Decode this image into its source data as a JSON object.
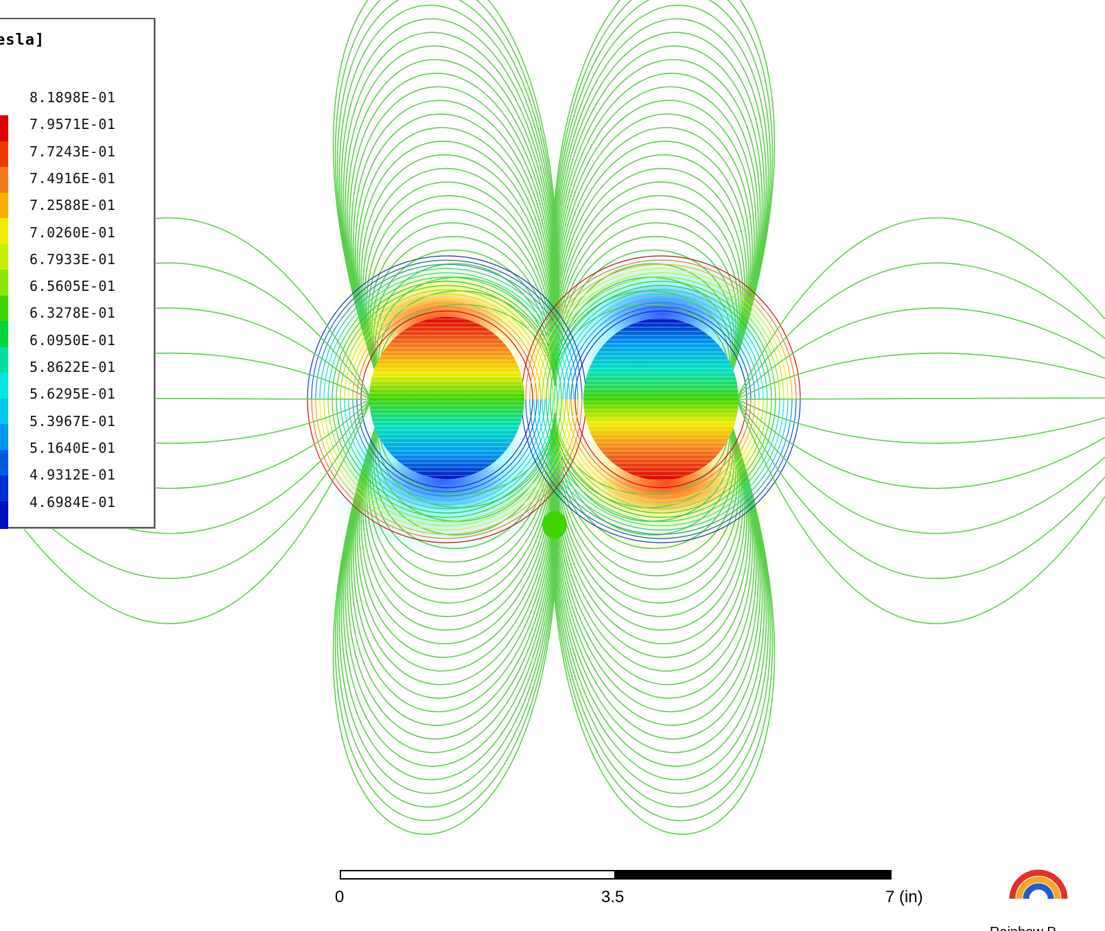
{
  "legend": {
    "title": "esla]",
    "values": [
      "8.1898E-01",
      "7.9571E-01",
      "7.7243E-01",
      "7.4916E-01",
      "7.2588E-01",
      "7.0260E-01",
      "6.7933E-01",
      "6.5605E-01",
      "6.3278E-01",
      "6.0950E-01",
      "5.8622E-01",
      "5.6295E-01",
      "5.3967E-01",
      "5.1640E-01",
      "4.9312E-01",
      "4.6984E-01"
    ],
    "colors": [
      "#e00000",
      "#ee3a00",
      "#f4781c",
      "#f9b000",
      "#f2ee00",
      "#c8ef00",
      "#8ce800",
      "#3ed400",
      "#00d63a",
      "#00e0a0",
      "#00e8e0",
      "#00c8f0",
      "#0096f0",
      "#005ae0",
      "#0030d8",
      "#0010c0"
    ]
  },
  "field_plot": {
    "line_color": "#5ad04a",
    "left_cylinder": {
      "top_color": "#e00000",
      "bottom_color": "#0010c0"
    },
    "right_cylinder": {
      "top_color": "#0010c0",
      "bottom_color": "#e00000"
    }
  },
  "scale_bar": {
    "labels": [
      "0",
      "3.5",
      "7 (in)"
    ]
  },
  "logo": {
    "colors": [
      "#e4302a",
      "#f5a623",
      "#1d5ec8"
    ],
    "text": "Rainbow P..."
  }
}
